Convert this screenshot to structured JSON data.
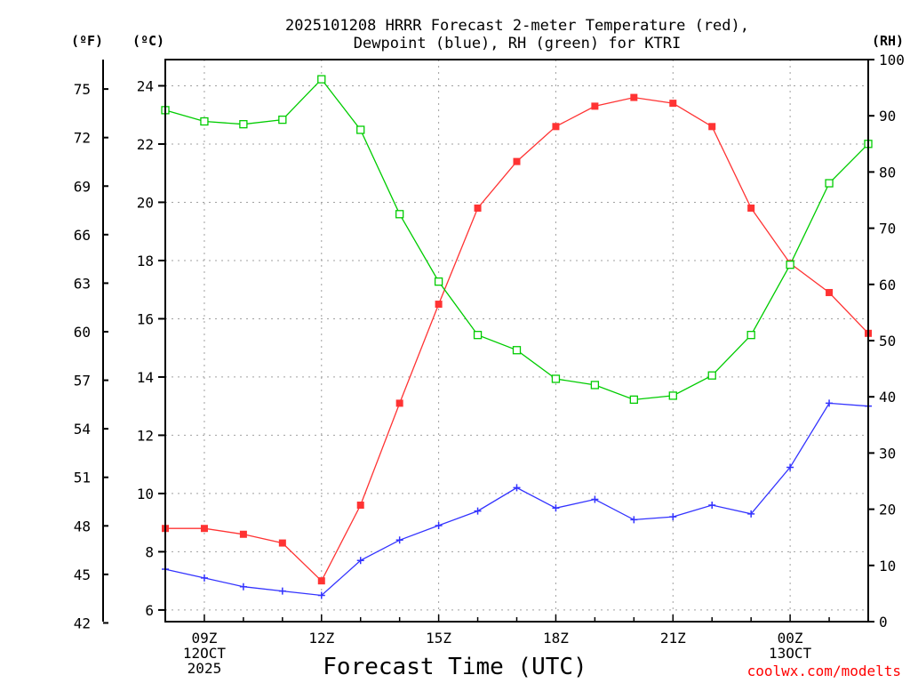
{
  "title_line1": "2025101208 HRRR Forecast 2-meter Temperature (red),",
  "title_line2": "Dewpoint (blue), RH (green) for KTRI",
  "unit_f": "(ºF)",
  "unit_c": "(ºC)",
  "unit_rh": "(RH)",
  "xlabel": "Forecast Time (UTC)",
  "credit": "coolwx.com/modelts",
  "colors": {
    "temperature": "#ff3333",
    "dewpoint": "#3333ff",
    "rh": "#00cc00"
  },
  "chart_data": {
    "type": "line",
    "station": "KTRI",
    "x_hours": [
      8,
      9,
      10,
      11,
      12,
      13,
      14,
      15,
      16,
      17,
      18,
      19,
      20,
      21,
      22,
      23,
      24,
      25,
      26
    ],
    "x_tick_labels": [
      {
        "hour": 9,
        "lines": [
          "09Z",
          "12OCT",
          "2025"
        ]
      },
      {
        "hour": 12,
        "lines": [
          "12Z"
        ]
      },
      {
        "hour": 15,
        "lines": [
          "15Z"
        ]
      },
      {
        "hour": 18,
        "lines": [
          "18Z"
        ]
      },
      {
        "hour": 21,
        "lines": [
          "21Z"
        ]
      },
      {
        "hour": 24,
        "lines": [
          "00Z",
          "13OCT"
        ]
      }
    ],
    "xlim": [
      8,
      26
    ],
    "ylim_c": [
      5.6,
      24.9
    ],
    "y_ticks_c": [
      6,
      8,
      10,
      12,
      14,
      16,
      18,
      20,
      22,
      24
    ],
    "y_ticks_f": [
      42,
      45,
      48,
      51,
      54,
      57,
      60,
      63,
      66,
      69,
      72,
      75
    ],
    "ylim_rh": [
      0,
      100
    ],
    "y_ticks_rh": [
      0,
      10,
      20,
      30,
      40,
      50,
      60,
      70,
      80,
      90,
      100
    ],
    "series": [
      {
        "name": "Temperature (red)",
        "unit": "C",
        "marker": "filled-square",
        "values": [
          8.8,
          8.8,
          8.6,
          8.3,
          7.0,
          9.6,
          13.1,
          16.5,
          19.8,
          21.4,
          22.6,
          23.3,
          23.6,
          23.4,
          22.6,
          19.8,
          17.9,
          16.9,
          15.5
        ]
      },
      {
        "name": "Dewpoint (blue)",
        "unit": "C",
        "marker": "plus",
        "values": [
          7.4,
          7.1,
          6.8,
          6.65,
          6.5,
          7.7,
          8.4,
          8.9,
          9.4,
          10.2,
          9.5,
          9.8,
          9.1,
          9.2,
          9.6,
          9.3,
          10.9,
          13.1,
          13.0
        ]
      },
      {
        "name": "RH (green)",
        "unit": "%",
        "marker": "open-square",
        "values": [
          91,
          89,
          88.5,
          89.3,
          96.5,
          87.5,
          72.5,
          60.5,
          51,
          48.3,
          43.2,
          42.1,
          39.5,
          40.2,
          43.8,
          51,
          63.5,
          78,
          85
        ]
      }
    ]
  }
}
